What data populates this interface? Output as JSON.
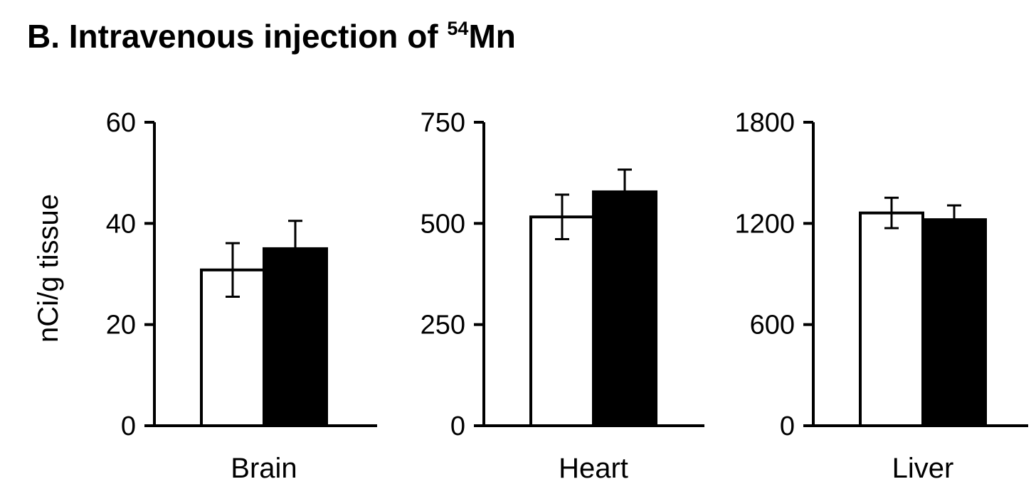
{
  "figure": {
    "title_prefix": "B. Intravenous injection of ",
    "title_superscript": "54",
    "title_suffix": "Mn"
  },
  "chart_data": [
    {
      "type": "bar",
      "categories": [
        "Brain"
      ],
      "ylabel": "nCi/g tissue",
      "ylim": [
        0,
        60
      ],
      "yticks": [
        "0",
        "20",
        "40",
        "60"
      ],
      "series": [
        {
          "fill": "#ffffff",
          "values": [
            30.8
          ],
          "error": [
            5.3
          ]
        },
        {
          "fill": "#000000",
          "values": [
            35.0
          ],
          "error": [
            5.5
          ]
        }
      ]
    },
    {
      "type": "bar",
      "categories": [
        "Heart"
      ],
      "ylabel": "",
      "ylim": [
        0,
        750
      ],
      "yticks": [
        "0",
        "250",
        "500",
        "750"
      ],
      "series": [
        {
          "fill": "#ffffff",
          "values": [
            516
          ],
          "error": [
            55
          ]
        },
        {
          "fill": "#000000",
          "values": [
            578
          ],
          "error": [
            55
          ]
        }
      ]
    },
    {
      "type": "bar",
      "categories": [
        "Liver"
      ],
      "ylabel": "",
      "ylim": [
        0,
        1800
      ],
      "yticks": [
        "0",
        "600",
        "1200",
        "1800"
      ],
      "series": [
        {
          "fill": "#ffffff",
          "values": [
            1262
          ],
          "error": [
            90
          ]
        },
        {
          "fill": "#000000",
          "values": [
            1222
          ],
          "error": [
            85
          ]
        }
      ]
    }
  ],
  "grid": false
}
